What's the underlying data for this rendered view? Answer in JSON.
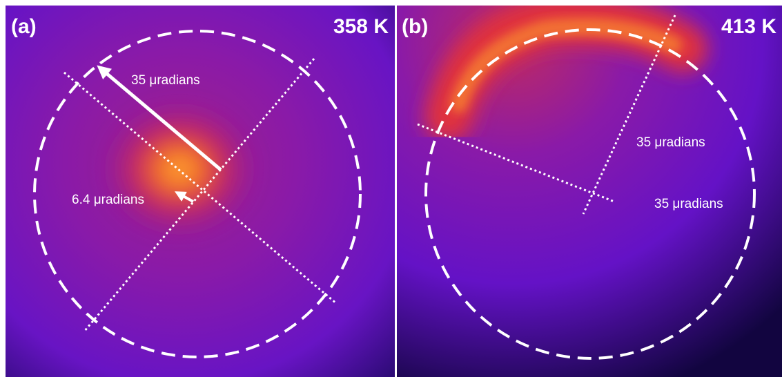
{
  "panels": [
    {
      "label": "(a)",
      "temperature": "358 K",
      "annotations": [
        "35 μradians",
        "6.4 μradians"
      ]
    },
    {
      "label": "(b)",
      "temperature": "413 K",
      "annotations": [
        "35 μradians",
        "35 μradians"
      ]
    }
  ]
}
